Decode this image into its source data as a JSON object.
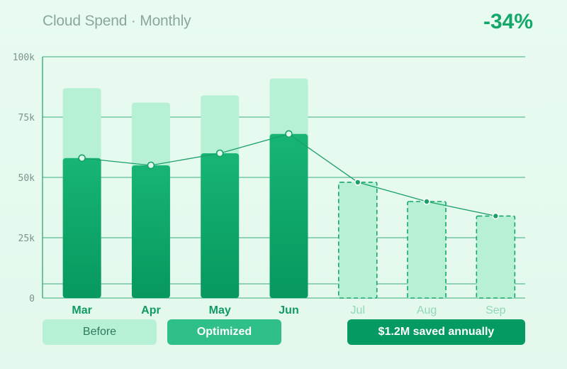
{
  "header": {
    "title": "Cloud Spend · Monthly",
    "delta": "-34%"
  },
  "legend": {
    "before": "Before",
    "optimized": "Optimized",
    "saved": "$1.2M saved annually"
  },
  "colors": {
    "before": "#b6f0d5",
    "optimized": "#13a86a",
    "forecast": "#b8f0d5",
    "line": "#1a9f69",
    "grid": "#1e9f6a"
  },
  "chart_data": {
    "type": "bar",
    "categories": [
      "Mar",
      "Apr",
      "May",
      "Jun",
      "Jul",
      "Aug",
      "Sep"
    ],
    "ylim": [
      0,
      100
    ],
    "yticks": [
      "0",
      "25k",
      "50k",
      "75k",
      "100k"
    ],
    "series": [
      {
        "values": [
          87,
          81,
          84,
          91,
          null,
          null,
          null
        ]
      },
      {
        "values": [
          58,
          55,
          60,
          68,
          null,
          null,
          null
        ]
      },
      {
        "values": [
          null,
          null,
          null,
          null,
          48,
          40,
          34
        ]
      }
    ],
    "line": [
      58,
      55,
      60,
      68,
      48,
      40,
      34
    ]
  }
}
